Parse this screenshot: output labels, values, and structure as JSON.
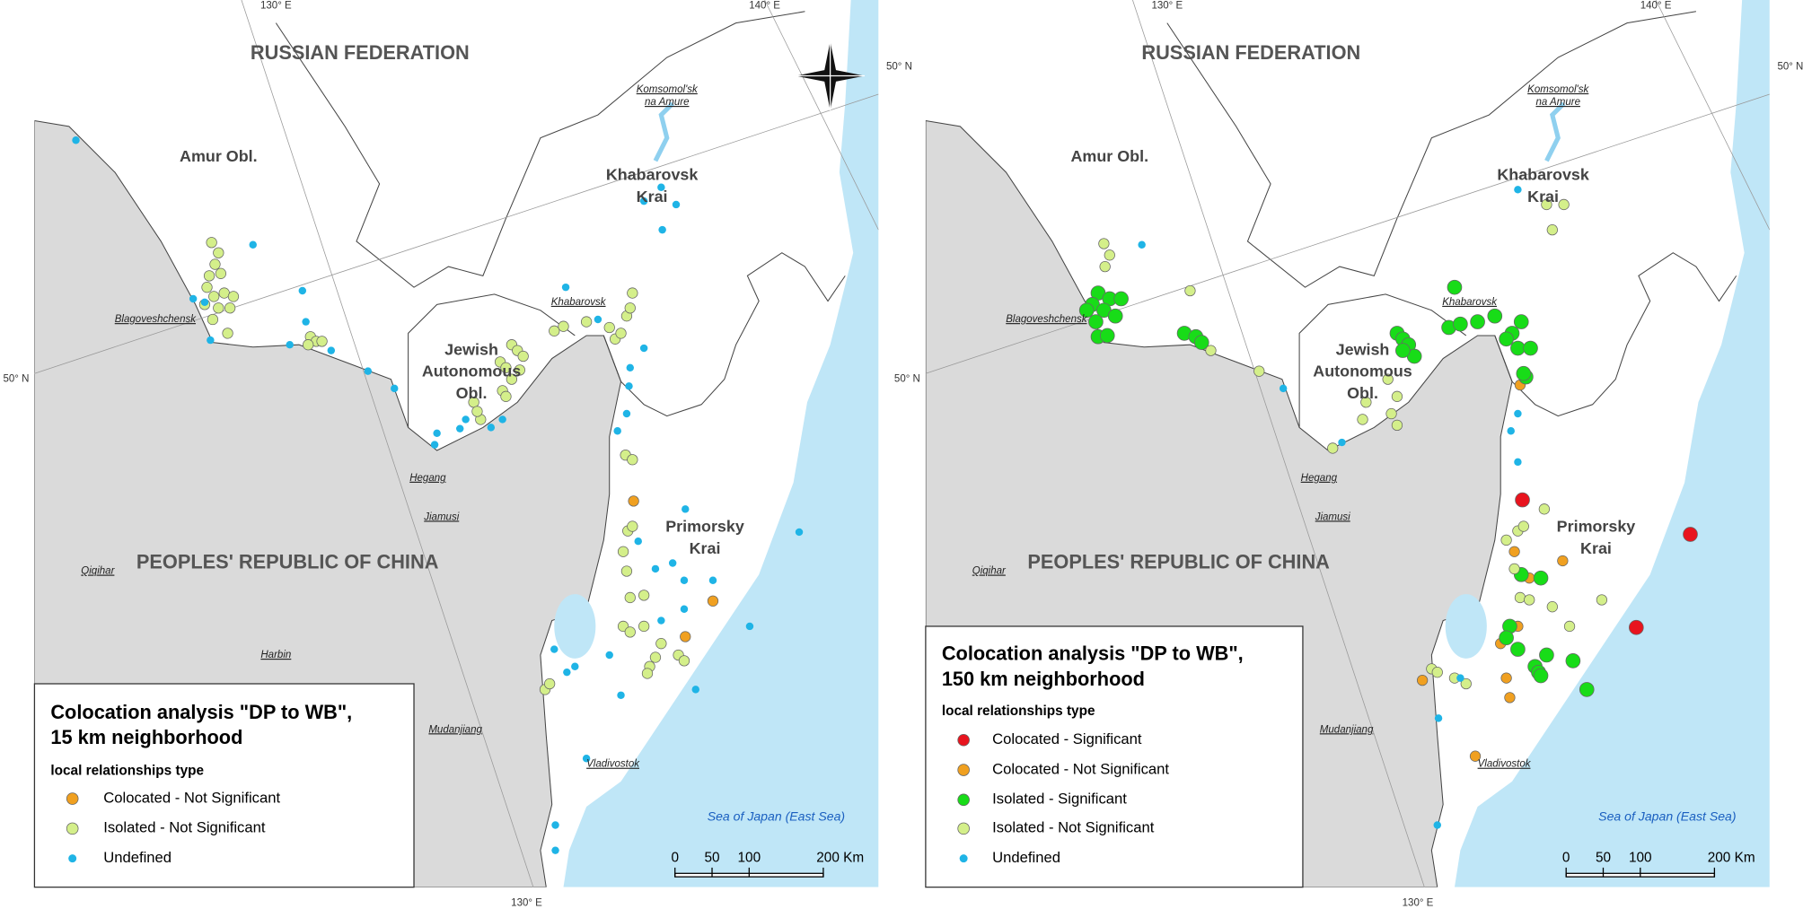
{
  "panels": [
    {
      "map_labels": {
        "lon_130_top": "130° E",
        "lon_140_top": "140° E",
        "lat_50_right": "50° N",
        "lat_50_left": "50° N",
        "lon_130_bottom": "130° E",
        "russia": "RUSSIAN FEDERATION",
        "amur": "Amur Obl.",
        "khabarovsk_krai": [
          "Khabarovsk",
          "Krai"
        ],
        "komsomolsk": [
          "Komsomol'sk",
          "na Amure"
        ],
        "blagoveshchensk": "Blagoveshchensk",
        "khabarovsk": "Khabarovsk",
        "jewish": [
          "Jewish",
          "Autonomous",
          "Obl."
        ],
        "hegang": "Hegang",
        "jiamusi": "Jiamusi",
        "qiqihar": "Qiqihar",
        "china": "PEOPLES' REPUBLIC OF CHINA",
        "harbin": "Harbin",
        "mudanjiang": "Mudanjiang",
        "vladivostok": "Vladivostok",
        "primorsky": [
          "Primorsky",
          "Krai"
        ],
        "sea": "Sea of Japan (East Sea)"
      },
      "legend": {
        "title": [
          "Colocation analysis \"DP to WB\",",
          "15 km neighborhood"
        ],
        "heading": "local relationships type",
        "items": [
          {
            "label": "Colocated - Not Significant",
            "color": "#f0a020"
          },
          {
            "label": "Isolated - Not Significant",
            "color": "#d4ef8a"
          },
          {
            "label": "Undefined",
            "color": "#1fb4e6"
          }
        ]
      },
      "scale_bar": {
        "ticks": [
          0,
          50,
          100,
          {
            "value": 200,
            "label": "200 Km"
          }
        ]
      }
    },
    {
      "map_labels": {
        "lon_130_top": "130° E",
        "lon_140_top": "140° E",
        "lat_50_right": "50° N",
        "lat_50_left": "50° N",
        "lon_130_bottom": "130° E",
        "russia": "RUSSIAN FEDERATION",
        "amur": "Amur Obl.",
        "khabarovsk_krai": [
          "Khabarovsk",
          "Krai"
        ],
        "komsomolsk": [
          "Komsomol'sk",
          "na Amure"
        ],
        "blagoveshchensk": "Blagoveshchensk",
        "khabarovsk": "Khabarovsk",
        "jewish": [
          "Jewish",
          "Autonomous",
          "Obl."
        ],
        "hegang": "Hegang",
        "jiamusi": "Jiamusi",
        "qiqihar": "Qiqihar",
        "china": "PEOPLES' REPUBLIC OF CHINA",
        "harbin": "Harbin",
        "mudanjiang": "Mudanjiang",
        "vladivostok": "Vladivostok",
        "primorsky": [
          "Primorsky",
          "Krai"
        ],
        "sea": "Sea of Japan (East Sea)"
      },
      "legend": {
        "title": [
          "Colocation analysis \"DP to WB\",",
          "150 km neighborhood"
        ],
        "heading": "local relationships type",
        "items": [
          {
            "label": "Colocated - Significant",
            "color": "#e8141e"
          },
          {
            "label": "Colocated - Not Significant",
            "color": "#f0a020"
          },
          {
            "label": "Isolated - Significant",
            "color": "#18dc18"
          },
          {
            "label": "Isolated - Not Significant",
            "color": "#d4ef8a"
          },
          {
            "label": "Undefined",
            "color": "#1fb4e6"
          }
        ]
      },
      "scale_bar": {
        "ticks": [
          0,
          50,
          100,
          {
            "value": 200,
            "label": "200 Km"
          }
        ]
      }
    }
  ]
}
